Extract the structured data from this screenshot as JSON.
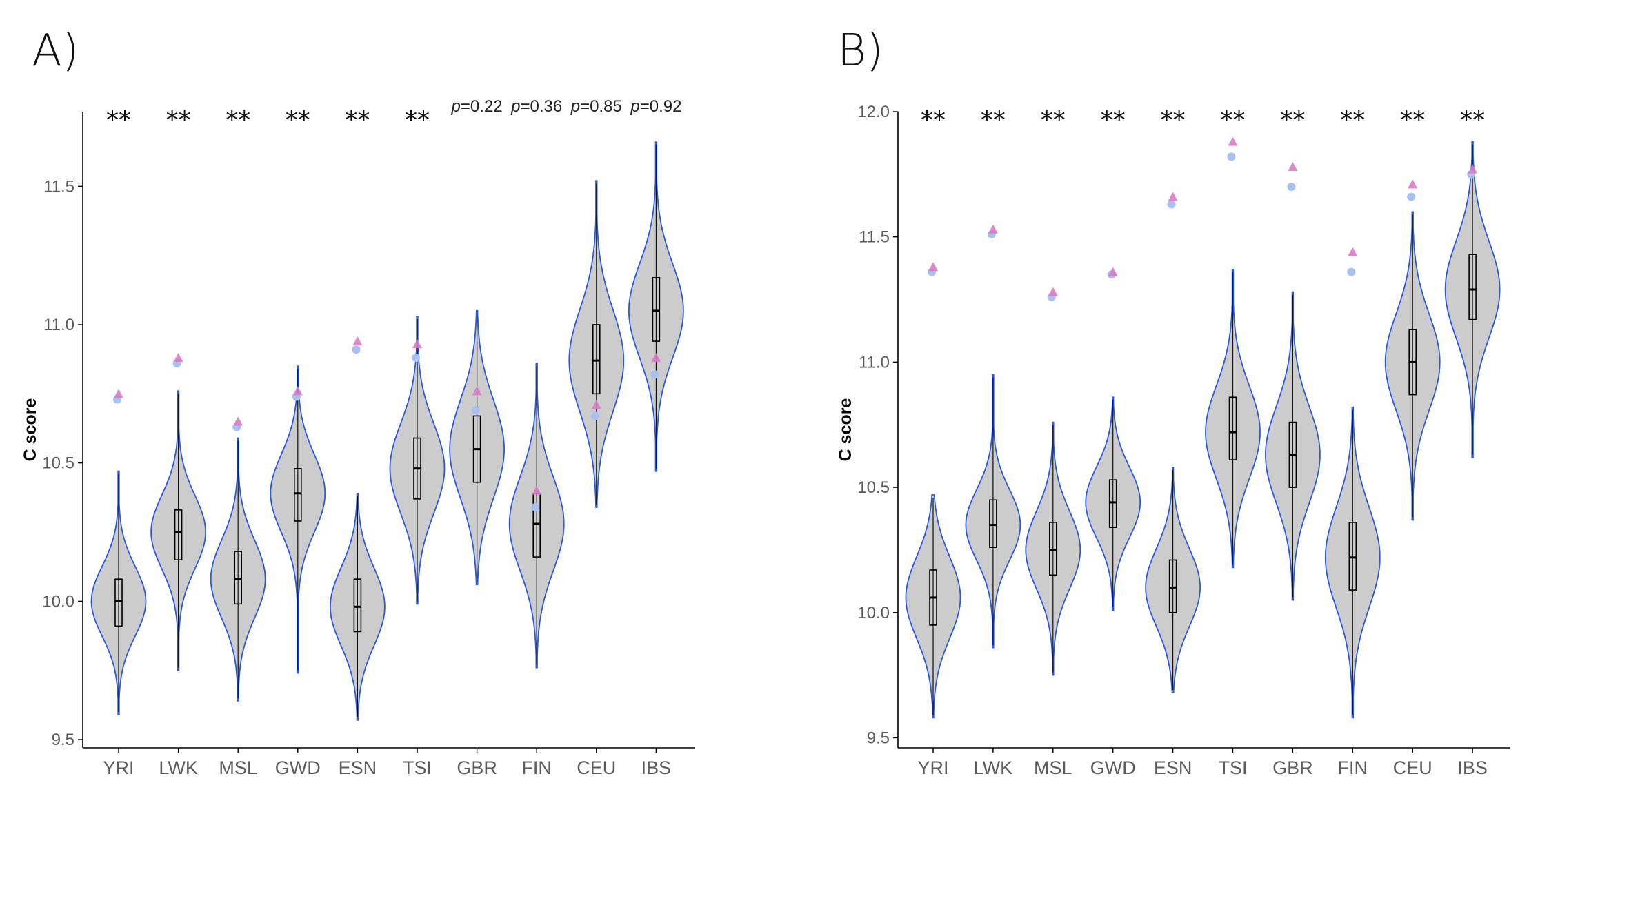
{
  "colors": {
    "violin_fill": "#cccccc",
    "violin_outline": "#2b59e0",
    "box_outline": "#000000",
    "triangle_marker": "#d77cc4",
    "circle_marker": "#a9c1f0",
    "axis": "#000000"
  },
  "chart_data": [
    {
      "panel": "A)",
      "type": "violin",
      "ylabel": "C score",
      "ylim": [
        9.47,
        11.77
      ],
      "yticks": [
        "9.5",
        "10.0",
        "10.5",
        "11.0",
        "11.5"
      ],
      "categories": [
        "YRI",
        "LWK",
        "MSL",
        "GWD",
        "ESN",
        "TSI",
        "GBR",
        "FIN",
        "CEU",
        "IBS"
      ],
      "significance": [
        "**",
        "**",
        "**",
        "**",
        "**",
        "**",
        "p=0.22",
        "p=0.36",
        "p=0.85",
        "p=0.92"
      ],
      "violins": [
        {
          "min": 9.59,
          "q1": 9.91,
          "median": 10.0,
          "q3": 10.08,
          "max": 10.47,
          "spread": 0.52
        },
        {
          "min": 9.75,
          "q1": 10.15,
          "median": 10.25,
          "q3": 10.33,
          "max": 10.76,
          "spread": 0.52
        },
        {
          "min": 9.64,
          "q1": 9.99,
          "median": 10.08,
          "q3": 10.18,
          "max": 10.59,
          "spread": 0.52
        },
        {
          "min": 9.74,
          "q1": 10.29,
          "median": 10.39,
          "q3": 10.48,
          "max": 10.85,
          "spread": 0.52
        },
        {
          "min": 9.57,
          "q1": 9.89,
          "median": 9.98,
          "q3": 10.08,
          "max": 10.39,
          "spread": 0.52
        },
        {
          "min": 9.99,
          "q1": 10.37,
          "median": 10.48,
          "q3": 10.59,
          "max": 11.03,
          "spread": 0.52
        },
        {
          "min": 10.06,
          "q1": 10.43,
          "median": 10.55,
          "q3": 10.67,
          "max": 11.05,
          "spread": 0.52
        },
        {
          "min": 9.76,
          "q1": 10.16,
          "median": 10.28,
          "q3": 10.39,
          "max": 10.86,
          "spread": 0.52
        },
        {
          "min": 10.34,
          "q1": 10.75,
          "median": 10.87,
          "q3": 11.0,
          "max": 11.52,
          "spread": 0.52
        },
        {
          "min": 10.47,
          "q1": 10.94,
          "median": 11.05,
          "q3": 11.17,
          "max": 11.66,
          "spread": 0.52
        }
      ],
      "triangles": [
        10.75,
        10.88,
        10.65,
        10.76,
        10.94,
        10.93,
        10.76,
        10.4,
        10.71,
        10.88
      ],
      "circles": [
        10.73,
        10.86,
        10.63,
        10.74,
        10.91,
        10.88,
        10.69,
        10.34,
        10.67,
        10.82
      ]
    },
    {
      "panel": "B)",
      "type": "violin",
      "ylabel": "C score",
      "ylim": [
        9.46,
        12.0
      ],
      "yticks": [
        "9.5",
        "10.0",
        "10.5",
        "11.0",
        "11.5",
        "12.0"
      ],
      "categories": [
        "YRI",
        "LWK",
        "MSL",
        "GWD",
        "ESN",
        "TSI",
        "GBR",
        "FIN",
        "CEU",
        "IBS"
      ],
      "significance": [
        "**",
        "**",
        "**",
        "**",
        "**",
        "**",
        "**",
        "**",
        "**",
        "**"
      ],
      "violins": [
        {
          "min": 9.58,
          "q1": 9.95,
          "median": 10.06,
          "q3": 10.17,
          "max": 10.47,
          "spread": 0.52
        },
        {
          "min": 9.86,
          "q1": 10.26,
          "median": 10.35,
          "q3": 10.45,
          "max": 10.95,
          "spread": 0.52
        },
        {
          "min": 9.75,
          "q1": 10.15,
          "median": 10.25,
          "q3": 10.36,
          "max": 10.76,
          "spread": 0.52
        },
        {
          "min": 10.01,
          "q1": 10.34,
          "median": 10.44,
          "q3": 10.53,
          "max": 10.86,
          "spread": 0.52
        },
        {
          "min": 9.68,
          "q1": 10.0,
          "median": 10.1,
          "q3": 10.21,
          "max": 10.58,
          "spread": 0.52
        },
        {
          "min": 10.18,
          "q1": 10.61,
          "median": 10.72,
          "q3": 10.86,
          "max": 11.37,
          "spread": 0.52
        },
        {
          "min": 10.05,
          "q1": 10.5,
          "median": 10.63,
          "q3": 10.76,
          "max": 11.28,
          "spread": 0.52
        },
        {
          "min": 9.58,
          "q1": 10.09,
          "median": 10.22,
          "q3": 10.36,
          "max": 10.82,
          "spread": 0.52
        },
        {
          "min": 10.37,
          "q1": 10.87,
          "median": 11.0,
          "q3": 11.13,
          "max": 11.6,
          "spread": 0.52
        },
        {
          "min": 10.62,
          "q1": 11.17,
          "median": 11.29,
          "q3": 11.43,
          "max": 11.88,
          "spread": 0.52
        }
      ],
      "triangles": [
        11.38,
        11.53,
        11.28,
        11.36,
        11.66,
        11.88,
        11.78,
        11.44,
        11.71,
        11.77
      ],
      "circles": [
        11.36,
        11.51,
        11.26,
        11.35,
        11.63,
        11.82,
        11.7,
        11.36,
        11.66,
        11.75
      ]
    }
  ]
}
